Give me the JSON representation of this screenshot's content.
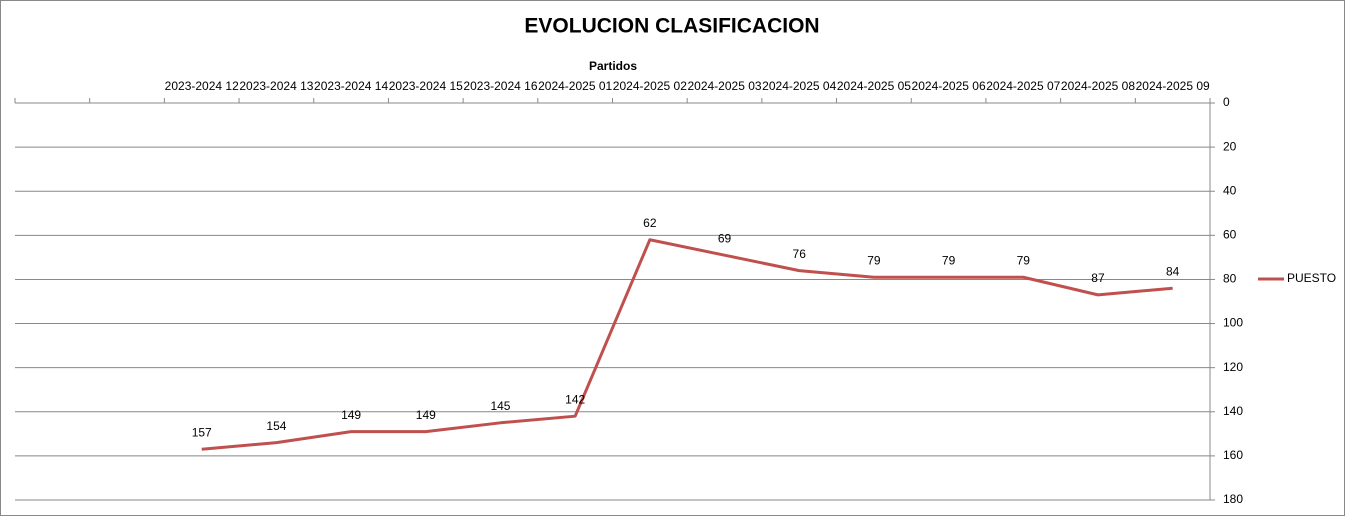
{
  "chart_data": {
    "type": "line",
    "title": "EVOLUCION CLASIFICACION",
    "x_label": "Partidos",
    "categories": [
      null,
      null,
      "2023-2024 12",
      "2023-2024 13",
      "2023-2024 14",
      "2023-2024 15",
      "2023-2024 16",
      "2024-2025 01",
      "2024-2025 02",
      "2024-2025 03",
      "2024-2025 04",
      "2024-2025 05",
      "2024-2025 06",
      "2024-2025 07",
      "2024-2025 08",
      "2024-2025 09"
    ],
    "series": [
      {
        "name": "PUESTO",
        "color": "#c0504d",
        "values": [
          null,
          null,
          157,
          154,
          149,
          149,
          145,
          142,
          62,
          69,
          76,
          79,
          79,
          79,
          87,
          84
        ]
      }
    ],
    "ylim": [
      0,
      180
    ],
    "yticks": [
      0,
      20,
      40,
      60,
      80,
      100,
      120,
      140,
      160,
      180
    ],
    "y_reversed": true,
    "y_axis_side": "right",
    "grid": true,
    "legend": "right",
    "data_labels": true
  }
}
